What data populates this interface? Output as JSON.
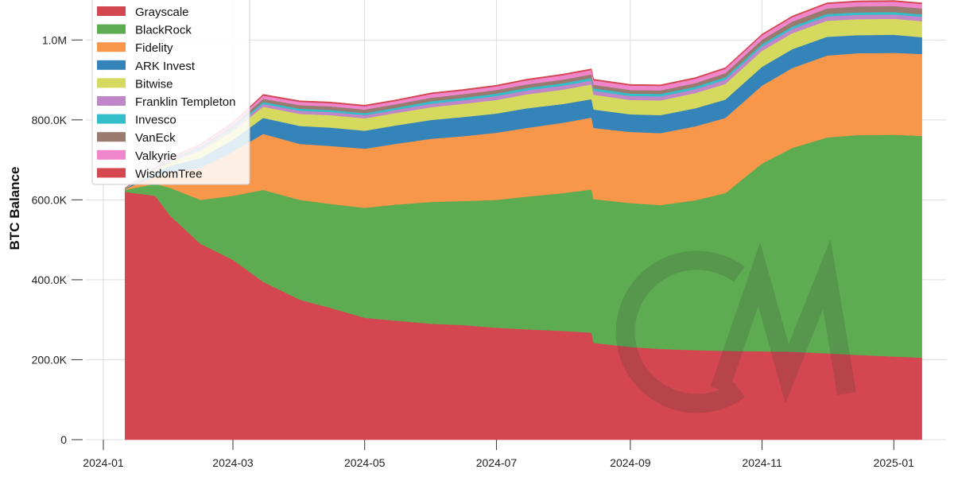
{
  "chart_data": {
    "type": "area",
    "stacked": true,
    "ylabel": "BTC Balance",
    "xlabel": "",
    "ylim": [
      0,
      1100000
    ],
    "y_ticks": [
      0,
      200000,
      400000,
      600000,
      800000,
      1000000
    ],
    "y_tick_labels": [
      "0",
      "200.0K",
      "400.0K",
      "600.0K",
      "800.0K",
      "1.0M"
    ],
    "x_ticks": [
      "2024-01-01",
      "2024-03-01",
      "2024-05-01",
      "2024-07-01",
      "2024-09-01",
      "2024-11-01",
      "2025-01-01"
    ],
    "x_tick_labels": [
      "2024-01",
      "2024-03",
      "2024-05",
      "2024-07",
      "2024-09",
      "2024-11",
      "2025-01"
    ],
    "xlim": [
      "2023-12-03",
      "2025-01-24"
    ],
    "grid": true,
    "legend_position": "top-left",
    "x": [
      "2024-01-11",
      "2024-01-25",
      "2024-02-01",
      "2024-02-15",
      "2024-03-01",
      "2024-03-15",
      "2024-04-01",
      "2024-04-15",
      "2024-05-01",
      "2024-05-15",
      "2024-06-01",
      "2024-06-15",
      "2024-07-01",
      "2024-07-15",
      "2024-08-01",
      "2024-08-14",
      "2024-08-15",
      "2024-09-01",
      "2024-09-15",
      "2024-10-01",
      "2024-10-15",
      "2024-11-01",
      "2024-11-15",
      "2024-12-01",
      "2024-12-15",
      "2025-01-01",
      "2025-01-14"
    ],
    "series": [
      {
        "name": "Grayscale",
        "color": "#d44650",
        "values": [
          620000,
          610000,
          560000,
          490000,
          450000,
          395000,
          350000,
          330000,
          305000,
          298000,
          290000,
          287000,
          280000,
          276000,
          272000,
          268000,
          242000,
          232000,
          227000,
          224000,
          222000,
          221000,
          220000,
          216000,
          212000,
          208000,
          205000
        ]
      },
      {
        "name": "BlackRock",
        "color": "#5eac52",
        "values": [
          5000,
          30000,
          70000,
          110000,
          160000,
          230000,
          250000,
          260000,
          275000,
          290000,
          305000,
          310000,
          320000,
          332000,
          345000,
          358000,
          360000,
          360000,
          360000,
          375000,
          395000,
          470000,
          510000,
          540000,
          550000,
          555000,
          555000
        ]
      },
      {
        "name": "Fidelity",
        "color": "#f8964a",
        "values": [
          2000,
          20000,
          40000,
          80000,
          110000,
          140000,
          140000,
          145000,
          148000,
          152000,
          158000,
          162000,
          168000,
          172000,
          176000,
          180000,
          178000,
          178000,
          180000,
          185000,
          188000,
          195000,
          200000,
          205000,
          205000,
          205000,
          205000
        ]
      },
      {
        "name": "ARK Invest",
        "color": "#3484ba",
        "values": [
          1000,
          10000,
          15000,
          25000,
          30000,
          40000,
          45000,
          46000,
          45000,
          46000,
          47000,
          48000,
          48000,
          49000,
          47000,
          46000,
          46000,
          44000,
          45000,
          45000,
          46000,
          47000,
          47000,
          47000,
          45000,
          45000,
          42000
        ]
      },
      {
        "name": "Bitwise",
        "color": "#d5d95e",
        "values": [
          500,
          5000,
          10000,
          18000,
          22000,
          28000,
          30000,
          31000,
          31000,
          31000,
          32000,
          33000,
          34000,
          35000,
          36000,
          37000,
          37000,
          36000,
          37000,
          38000,
          39000,
          40000,
          40000,
          40000,
          40000,
          40000,
          40000
        ]
      },
      {
        "name": "Franklin Templeton",
        "color": "#bf86c8",
        "values": [
          500,
          2000,
          3000,
          4000,
          5000,
          7000,
          8000,
          8000,
          8000,
          8000,
          9000,
          9000,
          10000,
          10000,
          10000,
          10000,
          10000,
          10000,
          10000,
          10000,
          11000,
          11000,
          11000,
          11000,
          11000,
          11000,
          11000
        ]
      },
      {
        "name": "Invesco",
        "color": "#32bfc9",
        "values": [
          200,
          1000,
          2000,
          3000,
          4000,
          5000,
          5000,
          5000,
          5000,
          5000,
          6000,
          6000,
          6000,
          6000,
          6000,
          6000,
          6000,
          6000,
          6000,
          6000,
          6000,
          6000,
          6000,
          6000,
          6000,
          6000,
          6000
        ]
      },
      {
        "name": "VanEck",
        "color": "#9a7a6e",
        "values": [
          200,
          1000,
          2000,
          3000,
          5000,
          8000,
          9000,
          9000,
          9000,
          9000,
          9000,
          9000,
          9000,
          9000,
          9000,
          9000,
          9000,
          9000,
          9000,
          9000,
          10000,
          11000,
          12000,
          14000,
          15000,
          15000,
          15000
        ]
      },
      {
        "name": "Valkyrie",
        "color": "#ef86cc",
        "values": [
          200,
          2000,
          3000,
          5000,
          6000,
          8000,
          8000,
          8000,
          8000,
          8000,
          9000,
          9000,
          9000,
          10000,
          11000,
          11000,
          11000,
          11000,
          11000,
          11000,
          11000,
          11000,
          11000,
          11000,
          11000,
          11000,
          11000
        ]
      },
      {
        "name": "WisdomTree",
        "color": "#d44650",
        "values": [
          100,
          500,
          1000,
          1500,
          2000,
          3000,
          3000,
          3000,
          3000,
          3000,
          3000,
          3000,
          3000,
          3000,
          3000,
          3000,
          3000,
          3000,
          3000,
          3000,
          3000,
          3000,
          3000,
          3000,
          3000,
          3000,
          3000
        ]
      }
    ]
  }
}
